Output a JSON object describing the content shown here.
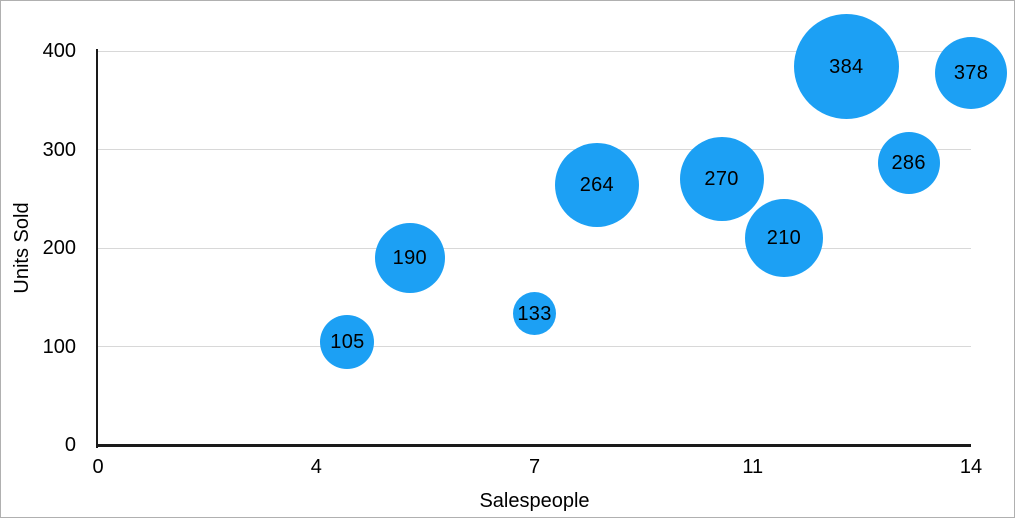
{
  "chart_data": {
    "type": "scatter",
    "variant": "bubble",
    "title": "",
    "xlabel": "Salespeople",
    "ylabel": "Units Sold",
    "xlim": [
      0,
      14
    ],
    "ylim": [
      0,
      400
    ],
    "grid": "horizontal-only",
    "legend": "none",
    "x_ticks": [
      {
        "label": "0",
        "value": 0
      },
      {
        "label": "4",
        "value": 3.5
      },
      {
        "label": "7",
        "value": 7
      },
      {
        "label": "11",
        "value": 10.5
      },
      {
        "label": "14",
        "value": 14
      }
    ],
    "y_ticks": [
      {
        "label": "0",
        "value": 0
      },
      {
        "label": "100",
        "value": 100
      },
      {
        "label": "200",
        "value": 200
      },
      {
        "label": "300",
        "value": 300
      },
      {
        "label": "400",
        "value": 400
      }
    ],
    "series": [
      {
        "name": "Units Sold",
        "points": [
          {
            "x": 4,
            "y": 105,
            "label": "105",
            "radius_px": 27
          },
          {
            "x": 5,
            "y": 190,
            "label": "190",
            "radius_px": 35
          },
          {
            "x": 7,
            "y": 133,
            "label": "133",
            "radius_px": 21.5
          },
          {
            "x": 8,
            "y": 264,
            "label": "264",
            "radius_px": 42
          },
          {
            "x": 10,
            "y": 270,
            "label": "270",
            "radius_px": 42
          },
          {
            "x": 11,
            "y": 210,
            "label": "210",
            "radius_px": 39
          },
          {
            "x": 12,
            "y": 384,
            "label": "384",
            "radius_px": 52.5
          },
          {
            "x": 13,
            "y": 286,
            "label": "286",
            "radius_px": 31
          },
          {
            "x": 14,
            "y": 378,
            "label": "378",
            "radius_px": 36
          }
        ]
      }
    ],
    "colors": {
      "bubble": "#1CA0F4",
      "gridline": "#d8d8d8",
      "axis": "#1a1a1a",
      "label": "#000000",
      "background": "#ffffff",
      "border": "#b0b0b0"
    }
  }
}
